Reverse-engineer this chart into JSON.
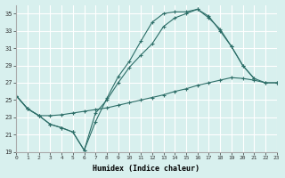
{
  "xlabel": "Humidex (Indice chaleur)",
  "xlim": [
    0,
    23
  ],
  "ylim": [
    19,
    36
  ],
  "yticks": [
    19,
    21,
    23,
    25,
    27,
    29,
    31,
    33,
    35
  ],
  "xticks": [
    0,
    1,
    2,
    3,
    4,
    5,
    6,
    7,
    8,
    9,
    10,
    11,
    12,
    13,
    14,
    15,
    16,
    17,
    18,
    19,
    20,
    21,
    22,
    23
  ],
  "bg_color": "#d8f0ee",
  "line_color": "#2d6e68",
  "grid_color": "#ffffff",
  "curves": [
    {
      "x": [
        0,
        1,
        2,
        3,
        4,
        5,
        6,
        7,
        8,
        9,
        10,
        11,
        12,
        13,
        14,
        15,
        16,
        17,
        18,
        19,
        20,
        21
      ],
      "y": [
        25.5,
        24.0,
        23.2,
        22.2,
        21.8,
        21.3,
        19.2,
        22.5,
        25.2,
        27.7,
        29.5,
        31.8,
        34.0,
        35.0,
        35.2,
        35.2,
        35.5,
        34.5,
        33.2,
        31.2,
        29.0,
        27.5
      ]
    },
    {
      "x": [
        0,
        1,
        2,
        3,
        4,
        5,
        6,
        7,
        8,
        9,
        10,
        11,
        12,
        13,
        14,
        15,
        16,
        17,
        18,
        19,
        20,
        21,
        22,
        23
      ],
      "y": [
        25.5,
        24.0,
        23.2,
        22.2,
        21.8,
        21.3,
        19.2,
        23.5,
        25.0,
        27.0,
        28.8,
        30.2,
        31.5,
        33.5,
        34.5,
        35.0,
        35.5,
        34.7,
        33.0,
        31.2,
        29.0,
        27.5,
        27.0,
        27.0
      ]
    },
    {
      "x": [
        0,
        1,
        2,
        3,
        4,
        5,
        6,
        7,
        8,
        9,
        10,
        11,
        12,
        13,
        14,
        15,
        16,
        17,
        18,
        19,
        20,
        21,
        22,
        23
      ],
      "y": [
        25.5,
        24.0,
        23.2,
        23.2,
        23.3,
        23.5,
        23.7,
        23.9,
        24.1,
        24.4,
        24.7,
        25.0,
        25.3,
        25.6,
        26.0,
        26.3,
        26.7,
        27.0,
        27.3,
        27.6,
        27.5,
        27.3,
        27.0,
        27.0
      ]
    }
  ]
}
